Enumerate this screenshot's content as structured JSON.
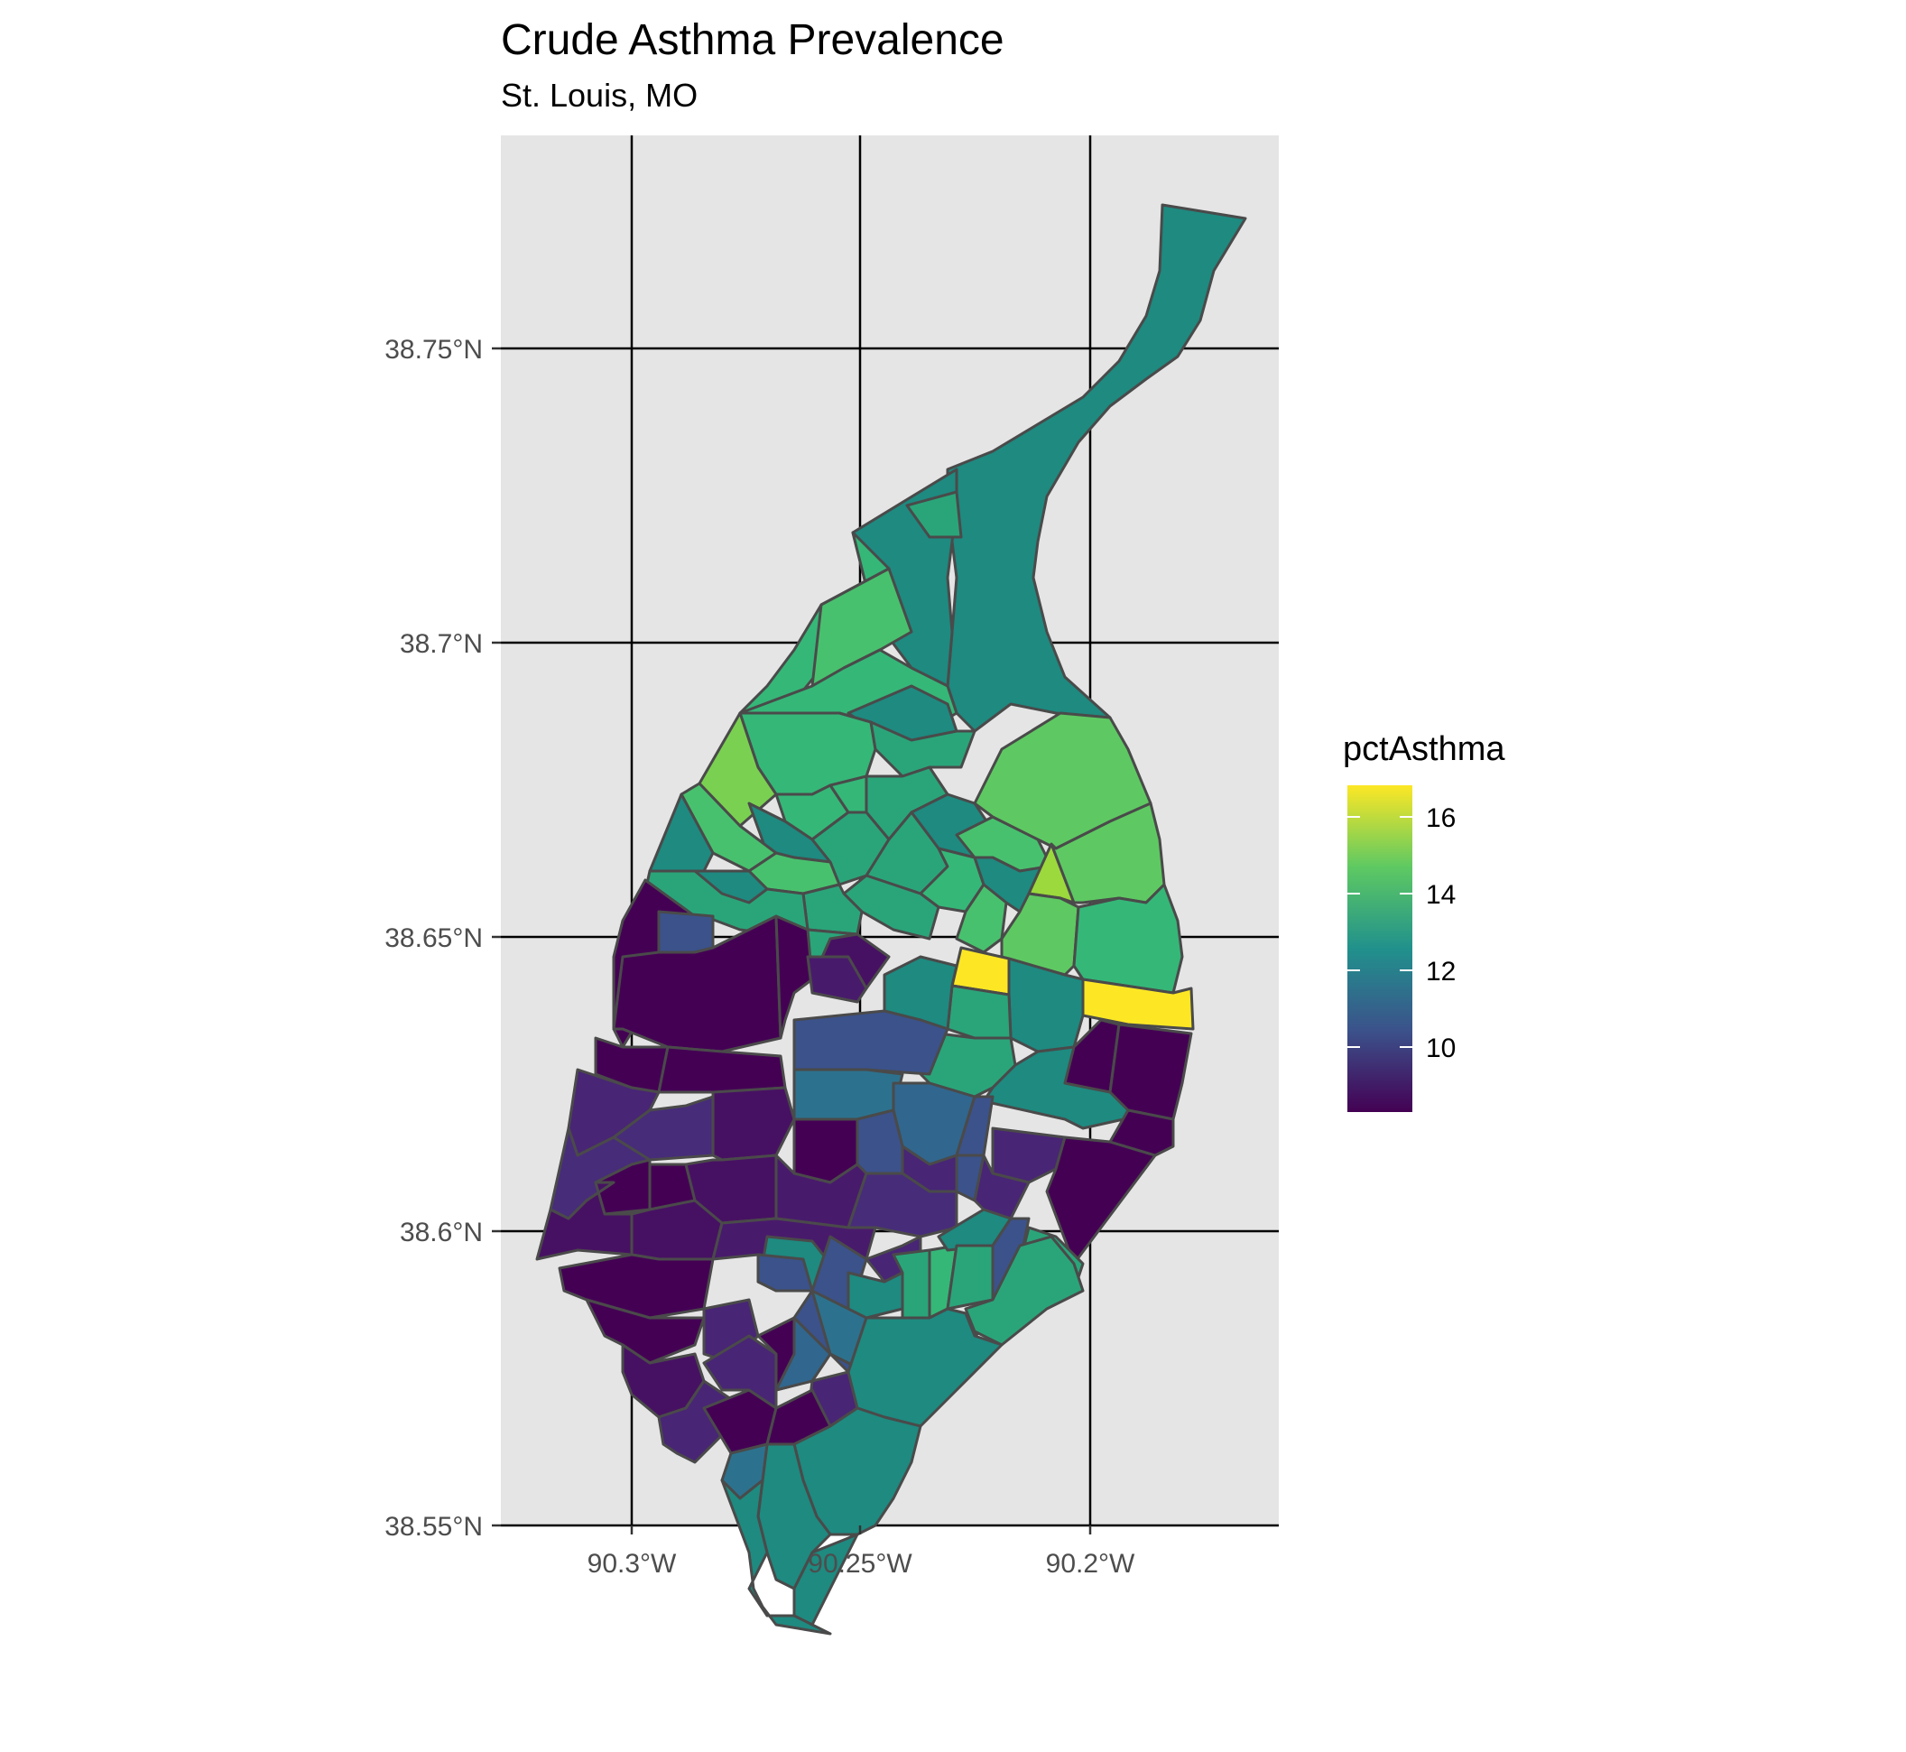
{
  "title": "Crude Asthma Prevalence",
  "subtitle": "St. Louis, MO",
  "chart_data": {
    "type": "choropleth",
    "title": "Crude Asthma Prevalence",
    "subtitle": "St. Louis, MO",
    "x_ticks": [
      "90.3°W",
      "90.25°W",
      "90.2°W"
    ],
    "y_ticks": [
      "38.75°N",
      "38.7°N",
      "38.65°N",
      "38.6°N",
      "38.55°N"
    ],
    "x_tick_values": [
      -90.3,
      -90.25,
      -90.2
    ],
    "y_tick_values": [
      38.75,
      38.7,
      38.65,
      38.6,
      38.55
    ],
    "xlim": [
      -90.328,
      -90.158
    ],
    "ylim": [
      38.521,
      38.785
    ],
    "grid": true,
    "legend": {
      "title": "pctAsthma",
      "position": "right",
      "range": [
        8.2,
        16.9
      ],
      "breaks": [
        10,
        12,
        14,
        16
      ],
      "break_labels": [
        "10",
        "12",
        "14",
        "16"
      ],
      "colormap": "viridis",
      "colors": [
        "#440154",
        "#3b528b",
        "#21918c",
        "#5ec962",
        "#fde725"
      ]
    },
    "regions_note_values": "pctAsthma per census tract, estimated from fill color",
    "background_color": "#e5e5e5",
    "outline_color": "#4a4a4a"
  }
}
